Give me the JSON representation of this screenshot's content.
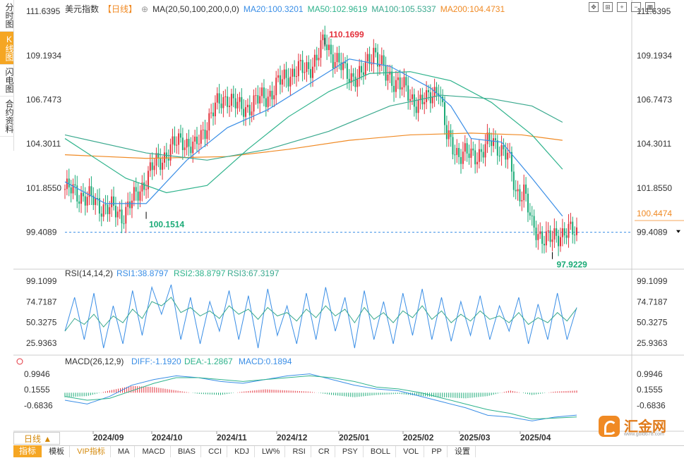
{
  "side_tabs": [
    {
      "label": "分时图",
      "active": false
    },
    {
      "label": "K线图",
      "active": true
    },
    {
      "label": "闪电图",
      "active": false
    },
    {
      "label": "合约资料",
      "active": false
    }
  ],
  "header": {
    "name": "美元指数",
    "period": "【日线】",
    "ma_label": "MA(20,50,100,200,0,0)",
    "ma20": "MA20:100.3201",
    "ma50": "MA50:102.9619",
    "ma100": "MA100:105.5337",
    "ma200": "MA200:104.4731"
  },
  "colors": {
    "up": "#e3323c",
    "down": "#1aaa76",
    "ma20": "#3a8ee6",
    "ma50": "#2fb38c",
    "ma100": "#3aa98e",
    "ma200": "#f08a24",
    "rsi1": "#3a8ee6",
    "rsi2": "#2fb38c",
    "rsi3": "#3aa98e",
    "diff": "#3a8ee6",
    "dea": "#2fb38c"
  },
  "chart_data": [
    {
      "type": "candlestick",
      "title": "美元指数",
      "y_ticks": [
        "111.6395",
        "109.1934",
        "106.7473",
        "104.3011",
        "101.8550",
        "99.4089"
      ],
      "ylim": [
        97.6,
        111.8
      ],
      "x_ticks": [
        "2024/09",
        "2024/10",
        "2024/11",
        "2024/12",
        "2025/01",
        "2025/02",
        "2025/03",
        "2025/04"
      ],
      "annotations": {
        "high": "110.1699",
        "low_left": "100.1514",
        "low_right": "97.9229",
        "last_price": "100.4474",
        "dashed_line": "99.4089"
      },
      "close_path": [
        [
          0,
          101.8
        ],
        [
          8,
          101.5
        ],
        [
          16,
          101.0
        ],
        [
          22,
          100.7
        ],
        [
          28,
          100.4
        ],
        [
          34,
          101.2
        ],
        [
          42,
          102.8
        ],
        [
          50,
          103.8
        ],
        [
          58,
          104.6
        ],
        [
          64,
          104.0
        ],
        [
          72,
          106.0
        ],
        [
          80,
          107.0
        ],
        [
          86,
          106.2
        ],
        [
          94,
          106.6
        ],
        [
          102,
          107.2
        ],
        [
          110,
          108.2
        ],
        [
          118,
          108.4
        ],
        [
          124,
          109.0
        ],
        [
          128,
          110.0
        ],
        [
          132,
          109.2
        ],
        [
          138,
          108.2
        ],
        [
          146,
          108.0
        ],
        [
          152,
          109.6
        ],
        [
          158,
          108.0
        ],
        [
          164,
          107.8
        ],
        [
          170,
          106.8
        ],
        [
          178,
          106.6
        ],
        [
          184,
          107.6
        ],
        [
          188,
          104.6
        ],
        [
          194,
          103.8
        ],
        [
          200,
          103.6
        ],
        [
          206,
          104.0
        ],
        [
          210,
          104.4
        ],
        [
          214,
          104.2
        ],
        [
          218,
          103.6
        ],
        [
          222,
          101.6
        ],
        [
          226,
          101.8
        ],
        [
          230,
          99.6
        ],
        [
          236,
          99.2
        ],
        [
          240,
          98.9
        ],
        [
          246,
          99.6
        ],
        [
          252,
          99.2
        ]
      ],
      "ma_paths": {
        "ma20": [
          [
            0,
            102.2
          ],
          [
            20,
            101.0
          ],
          [
            40,
            101.0
          ],
          [
            60,
            103.4
          ],
          [
            80,
            105.2
          ],
          [
            100,
            106.2
          ],
          [
            120,
            107.6
          ],
          [
            140,
            109.0
          ],
          [
            160,
            108.6
          ],
          [
            180,
            107.4
          ],
          [
            190,
            106.4
          ],
          [
            200,
            104.6
          ],
          [
            215,
            104.4
          ],
          [
            230,
            102.4
          ],
          [
            245,
            100.3
          ]
        ],
        "ma50": [
          [
            0,
            104.6
          ],
          [
            30,
            102.4
          ],
          [
            50,
            101.6
          ],
          [
            70,
            102.0
          ],
          [
            90,
            104.0
          ],
          [
            110,
            105.8
          ],
          [
            130,
            107.2
          ],
          [
            150,
            108.2
          ],
          [
            170,
            108.3
          ],
          [
            190,
            107.8
          ],
          [
            210,
            106.6
          ],
          [
            230,
            104.8
          ],
          [
            245,
            102.9
          ]
        ],
        "ma100": [
          [
            0,
            104.8
          ],
          [
            40,
            103.8
          ],
          [
            70,
            103.4
          ],
          [
            100,
            104.0
          ],
          [
            130,
            105.0
          ],
          [
            160,
            106.4
          ],
          [
            185,
            107.0
          ],
          [
            210,
            106.8
          ],
          [
            230,
            106.4
          ],
          [
            245,
            105.5
          ]
        ],
        "ma200": [
          [
            0,
            103.7
          ],
          [
            40,
            103.5
          ],
          [
            80,
            103.6
          ],
          [
            110,
            104.0
          ],
          [
            140,
            104.5
          ],
          [
            170,
            104.8
          ],
          [
            200,
            104.9
          ],
          [
            225,
            104.8
          ],
          [
            245,
            104.5
          ]
        ]
      }
    },
    {
      "type": "line",
      "title": "RSI(14,14,2)",
      "legend": [
        "RSI1:38.8797",
        "RSI2:38.8797",
        "RSI3:67.3197"
      ],
      "y_ticks": [
        "99.1099",
        "74.7187",
        "50.3275",
        "25.9363"
      ],
      "ylim": [
        15,
        100
      ],
      "series": [
        {
          "name": "RSI1",
          "values": [
            40,
            80,
            30,
            85,
            20,
            70,
            25,
            88,
            35,
            92,
            60,
            95,
            30,
            80,
            25,
            75,
            40,
            88,
            30,
            82,
            20,
            90,
            35,
            70,
            25,
            85,
            30,
            92,
            40,
            80,
            20,
            88,
            30,
            75,
            25,
            85,
            35,
            90,
            30,
            80,
            28,
            75,
            35,
            82,
            30,
            70,
            40,
            80,
            25,
            72,
            30,
            85,
            30,
            68
          ]
        },
        {
          "name": "RSI3",
          "values": [
            40,
            55,
            48,
            60,
            45,
            58,
            50,
            66,
            55,
            75,
            70,
            80,
            62,
            68,
            58,
            64,
            55,
            70,
            60,
            66,
            54,
            68,
            58,
            62,
            52,
            66,
            56,
            70,
            58,
            66,
            50,
            68,
            54,
            62,
            50,
            64,
            56,
            70,
            54,
            64,
            50,
            60,
            52,
            64,
            54,
            58,
            50,
            62,
            48,
            56,
            50,
            62,
            52,
            67
          ]
        }
      ]
    },
    {
      "type": "bar",
      "title": "MACD(26,12,9)",
      "legend": [
        "DIFF:-1.1920",
        "DEA:-1.2867",
        "MACD:0.1894"
      ],
      "y_ticks": [
        "0.9946",
        "0.1555",
        "-0.6836"
      ],
      "ylim": [
        -1.6,
        1.4
      ],
      "series": [
        {
          "name": "DIFF",
          "values": [
            -0.4,
            -0.6,
            -0.2,
            0.4,
            0.7,
            0.9,
            0.8,
            0.6,
            0.5,
            0.7,
            0.9,
            1.0,
            0.7,
            0.4,
            0.2,
            0.1,
            -0.2,
            -0.5,
            -0.8,
            -1.2,
            -1.3,
            -1.5,
            -1.3,
            -1.19
          ]
        },
        {
          "name": "DEA",
          "values": [
            -0.2,
            -0.4,
            -0.3,
            0.1,
            0.5,
            0.8,
            0.8,
            0.7,
            0.6,
            0.7,
            0.8,
            0.9,
            0.8,
            0.6,
            0.3,
            0.2,
            0,
            -0.3,
            -0.6,
            -0.9,
            -1.1,
            -1.4,
            -1.35,
            -1.29
          ]
        },
        {
          "name": "MACD",
          "values": [
            -0.4,
            -0.3,
            0.2,
            0.6,
            0.5,
            0.2,
            -0.1,
            -0.2,
            0.1,
            0.3,
            0.2,
            0.1,
            -0.2,
            -0.4,
            -0.2,
            -0.1,
            -0.3,
            -0.4,
            -0.5,
            -0.3,
            0.2,
            -0.2,
            0.1,
            0.19
          ]
        }
      ]
    }
  ],
  "bottom": {
    "period_btn": "日线 ▲",
    "indicator_btn": "指标",
    "items": [
      "模板",
      "VIP指标",
      "MA",
      "MACD",
      "BIAS",
      "CCI",
      "KDJ",
      "LW%",
      "RSI",
      "CR",
      "PSY",
      "BOLL",
      "VOL",
      "PP",
      "设置"
    ]
  },
  "logo": {
    "text": "汇金网",
    "url": "www.gold678.com"
  }
}
